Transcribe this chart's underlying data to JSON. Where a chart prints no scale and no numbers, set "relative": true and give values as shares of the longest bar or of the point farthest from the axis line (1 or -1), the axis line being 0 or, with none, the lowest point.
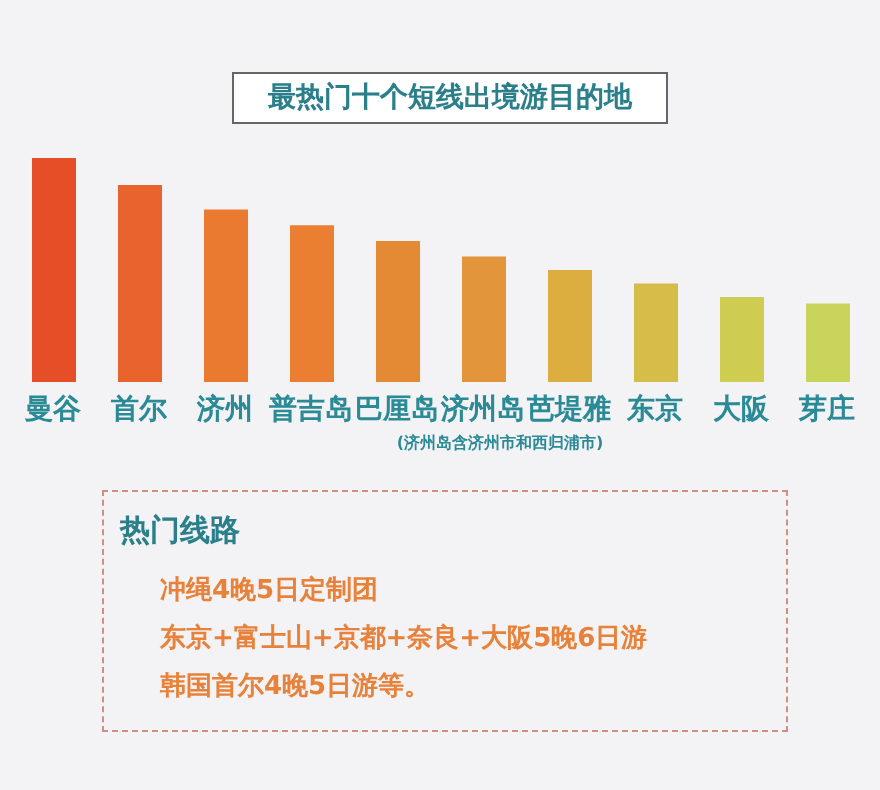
{
  "chart_data": {
    "type": "bar",
    "title": "最热门十个短线出境游目的地",
    "relative": true,
    "categories": [
      "曼谷",
      "首尔",
      "济州",
      "普吉岛",
      "巴厘岛",
      "济州岛",
      "芭堤雅",
      "东京",
      "大阪",
      "芽庄"
    ],
    "values": [
      1,
      0.88,
      0.77,
      0.7,
      0.63,
      0.56,
      0.5,
      0.44,
      0.38,
      0.35
    ],
    "colors": [
      "#e64e28",
      "#e8642c",
      "#ea7a30",
      "#ea7f32",
      "#e48a34",
      "#e2953a",
      "#dcae40",
      "#d6bc48",
      "#cfcc52",
      "#c8d45a"
    ],
    "annotations": [
      "(济州岛含济州市和西归浦市)",
      "热门线路",
      "冲绳4晚5日定制团",
      "东京+富士山+京都+奈良+大阪5晚6日游",
      "韩国首尔4晚5日游等。"
    ]
  }
}
